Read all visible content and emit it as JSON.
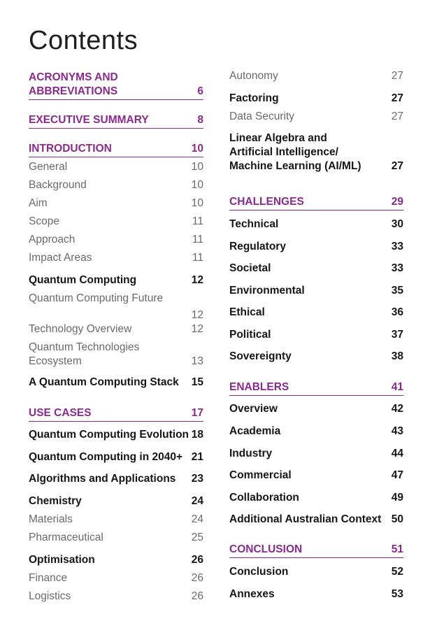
{
  "title": "Contents",
  "left": [
    {
      "text": "ACRONYMS AND\nABBREVIATIONS",
      "page": "6",
      "style": "sec"
    },
    {
      "text": "EXECUTIVE SUMMARY",
      "page": "8",
      "style": "sec"
    },
    {
      "text": "INTRODUCTION",
      "page": "10",
      "style": "sec"
    },
    {
      "text": "General",
      "page": "10",
      "style": "light"
    },
    {
      "text": "Background",
      "page": "10",
      "style": "light"
    },
    {
      "text": "Aim",
      "page": "10",
      "style": "light"
    },
    {
      "text": "Scope",
      "page": "11",
      "style": "light"
    },
    {
      "text": "Approach",
      "page": "11",
      "style": "light"
    },
    {
      "text": "Impact Areas",
      "page": "11",
      "style": "light"
    },
    {
      "text": "Quantum Computing",
      "page": "12",
      "style": "bold"
    },
    {
      "text": "Quantum Computing Future",
      "page": "12",
      "style": "light"
    },
    {
      "text": "Technology Overview",
      "page": "12",
      "style": "light"
    },
    {
      "text": "Quantum Technologies\nEcosystem",
      "page": "13",
      "style": "light"
    },
    {
      "text": "A Quantum Computing Stack",
      "page": "15",
      "style": "bold"
    },
    {
      "text": "USE CASES",
      "page": "17",
      "style": "sec"
    },
    {
      "text": "Quantum Computing Evolution",
      "page": "18",
      "style": "bold"
    },
    {
      "text": "Quantum Computing in 2040+",
      "page": "21",
      "style": "bold"
    },
    {
      "text": "Algorithms and Applications",
      "page": "23",
      "style": "bold"
    },
    {
      "text": "Chemistry",
      "page": "24",
      "style": "bold"
    },
    {
      "text": "Materials",
      "page": "24",
      "style": "light"
    },
    {
      "text": "Pharmaceutical",
      "page": "25",
      "style": "light"
    },
    {
      "text": "Optimisation",
      "page": "26",
      "style": "bold"
    },
    {
      "text": "Finance",
      "page": "26",
      "style": "light"
    },
    {
      "text": "Logistics",
      "page": "26",
      "style": "light"
    }
  ],
  "right": [
    {
      "text": "Autonomy",
      "page": "27",
      "style": "light"
    },
    {
      "text": "Factoring",
      "page": "27",
      "style": "bold"
    },
    {
      "text": "Data Security",
      "page": "27",
      "style": "light"
    },
    {
      "text": "Linear Algebra and\nArtificial Intelligence/\nMachine Learning (AI/ML)",
      "page": "27",
      "style": "bold"
    },
    {
      "text": "CHALLENGES",
      "page": "29",
      "style": "sec"
    },
    {
      "text": "Technical",
      "page": "30",
      "style": "bold"
    },
    {
      "text": "Regulatory",
      "page": "33",
      "style": "bold"
    },
    {
      "text": "Societal",
      "page": "33",
      "style": "bold"
    },
    {
      "text": "Environmental",
      "page": "35",
      "style": "bold"
    },
    {
      "text": "Ethical",
      "page": "36",
      "style": "bold"
    },
    {
      "text": "Political",
      "page": "37",
      "style": "bold"
    },
    {
      "text": "Sovereignty",
      "page": "38",
      "style": "bold"
    },
    {
      "text": "ENABLERS",
      "page": "41",
      "style": "sec"
    },
    {
      "text": "Overview",
      "page": "42",
      "style": "bold"
    },
    {
      "text": "Academia",
      "page": "43",
      "style": "bold"
    },
    {
      "text": "Industry",
      "page": "44",
      "style": "bold"
    },
    {
      "text": "Commercial",
      "page": "47",
      "style": "bold"
    },
    {
      "text": "Collaboration",
      "page": "49",
      "style": "bold"
    },
    {
      "text": "Additional Australian Context",
      "page": "50",
      "style": "bold"
    },
    {
      "text": "CONCLUSION",
      "page": "51",
      "style": "sec"
    },
    {
      "text": "Conclusion",
      "page": "52",
      "style": "bold"
    },
    {
      "text": "Annexes",
      "page": "53",
      "style": "bold"
    }
  ]
}
